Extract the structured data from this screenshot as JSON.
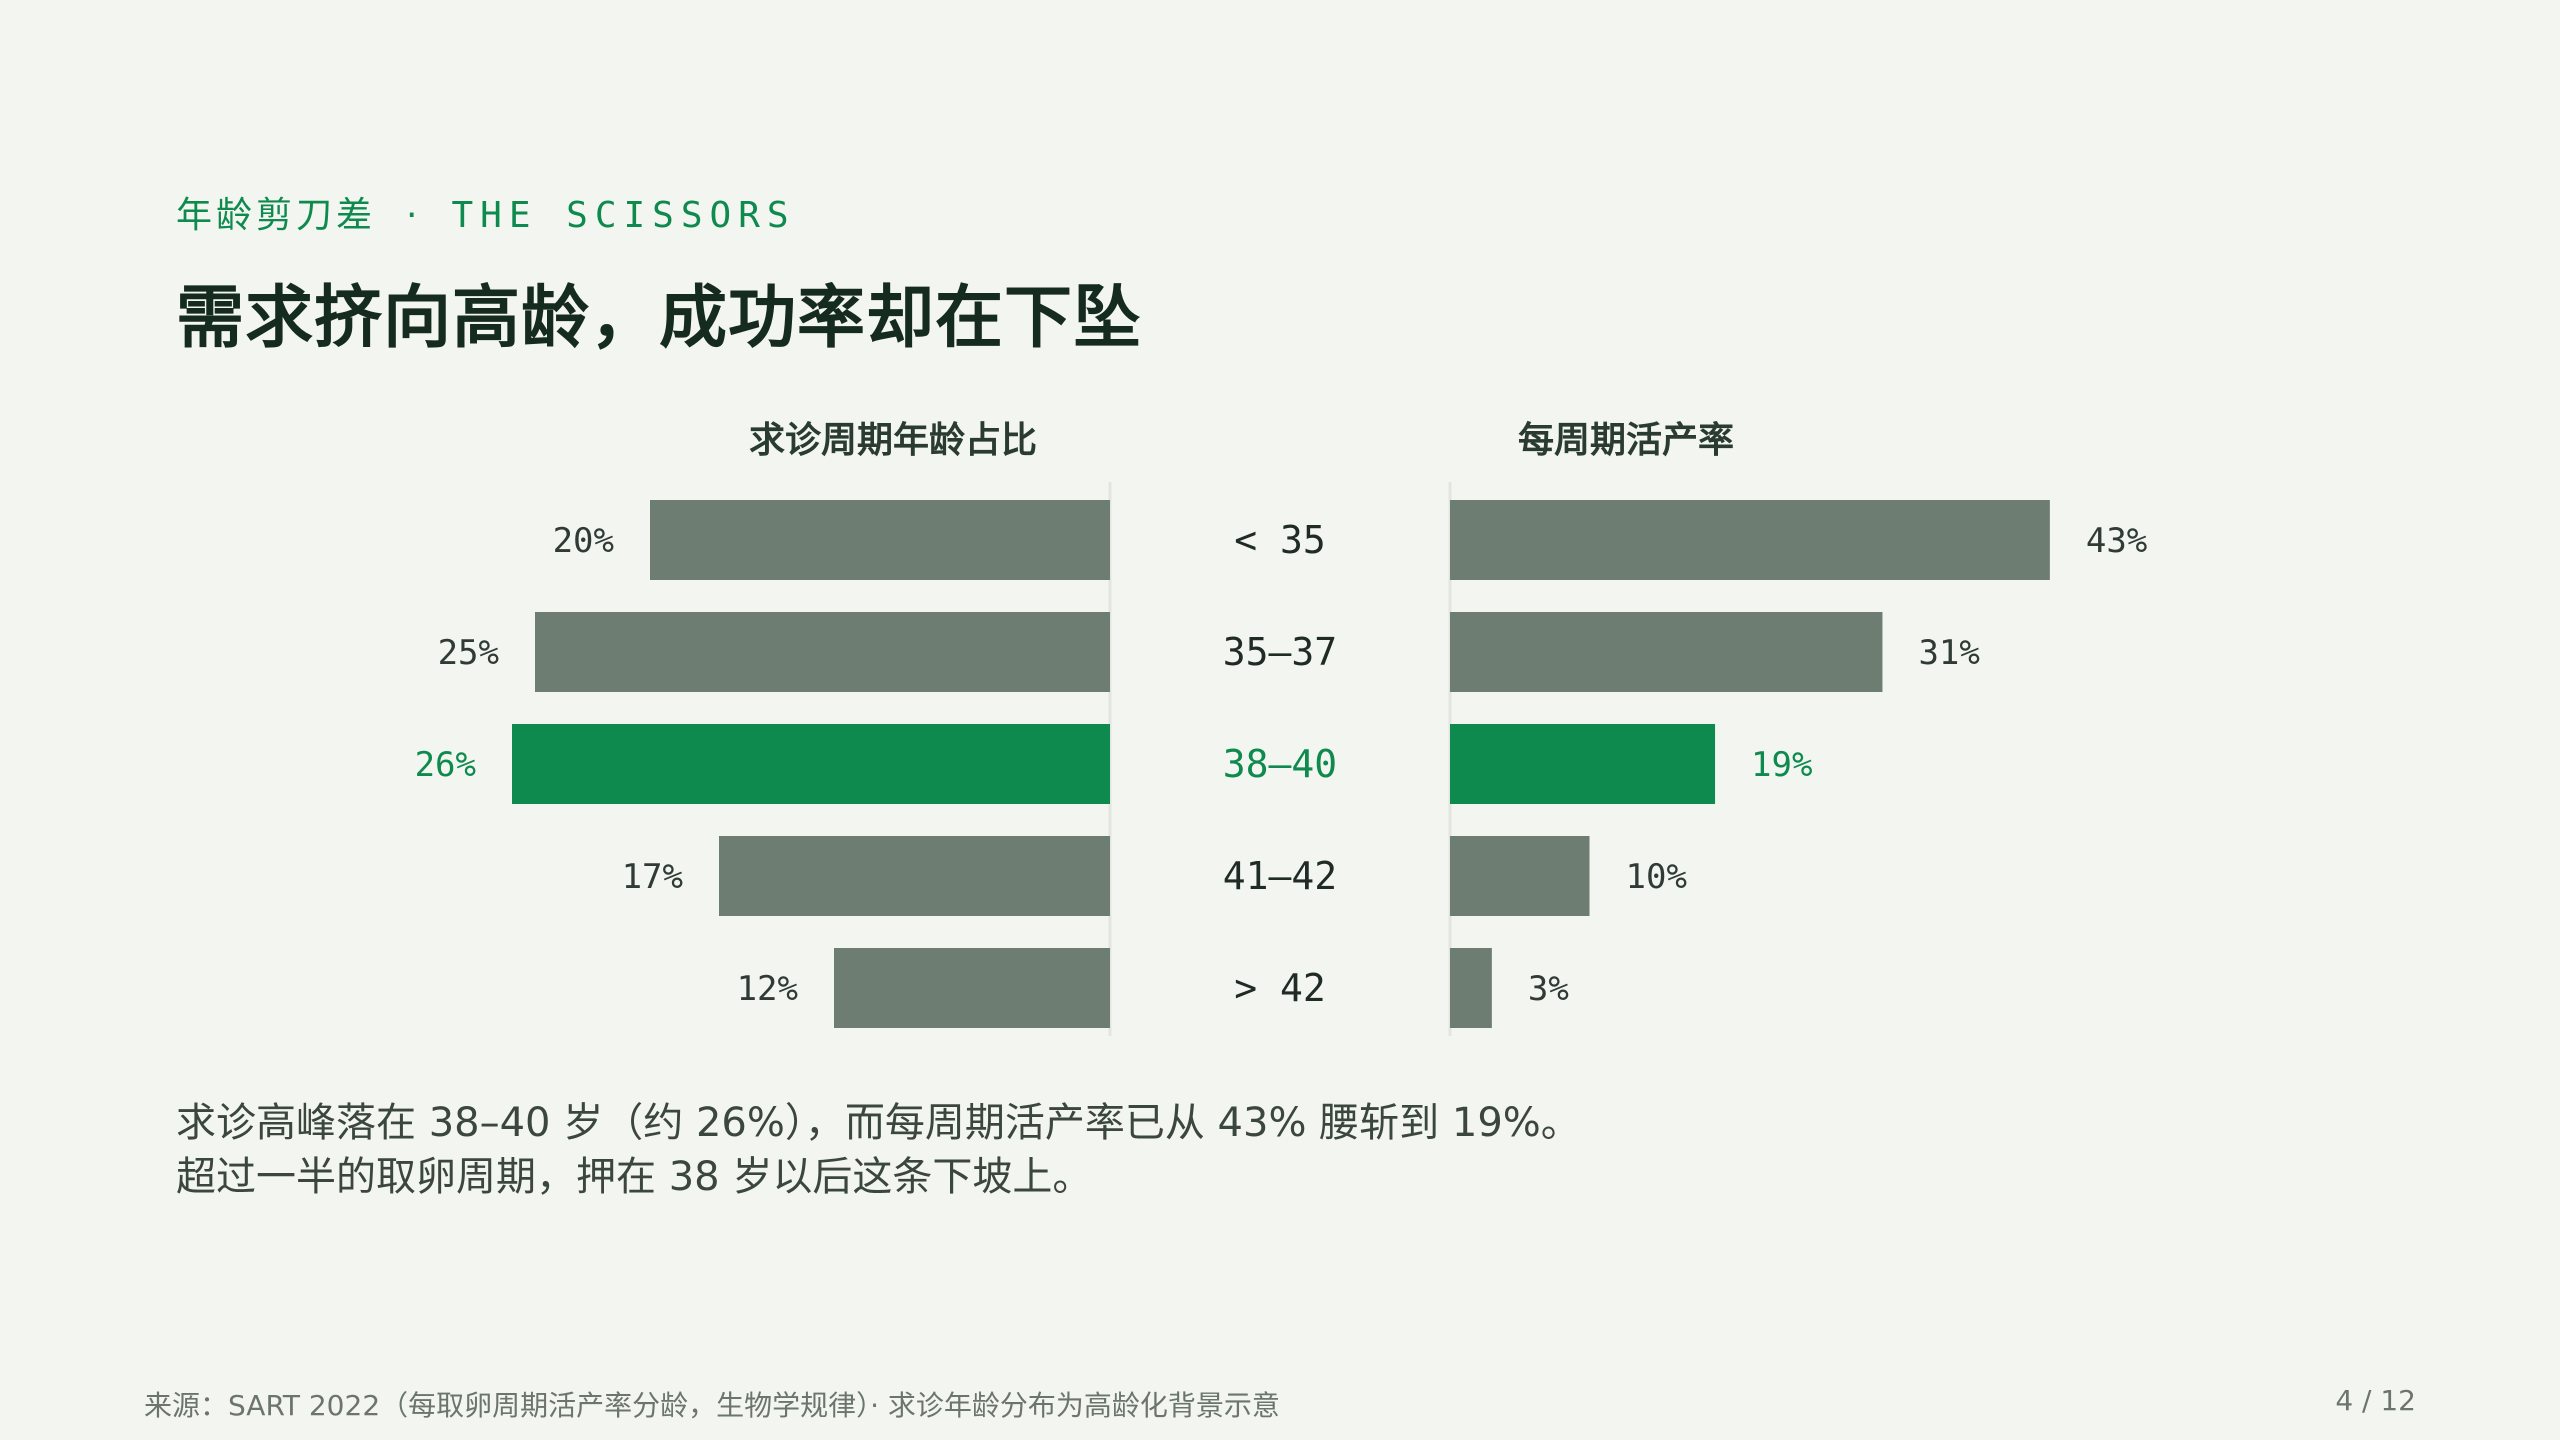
{
  "header": {
    "eyebrow_cn": "年龄剪刀差",
    "eyebrow_sep": "·",
    "eyebrow_en": "THE SCISSORS",
    "title": "需求挤向高龄，成功率却在下坠"
  },
  "chart_data": {
    "type": "bar",
    "layout": "butterfly",
    "categories": [
      "< 35",
      "35–37",
      "38–40",
      "41–42",
      "> 42"
    ],
    "highlight_category": "38–40",
    "series": [
      {
        "name": "求诊周期年龄占比",
        "values": [
          20,
          25,
          26,
          17,
          12
        ],
        "labels": [
          "20%",
          "25%",
          "26%",
          "17%",
          "12%"
        ],
        "unit": "%"
      },
      {
        "name": "每周期活产率",
        "values": [
          43,
          31,
          19,
          10,
          3
        ],
        "labels": [
          "43%",
          "31%",
          "19%",
          "10%",
          "3%"
        ],
        "unit": "%"
      }
    ],
    "colors": {
      "bar": "#6d7d71",
      "highlight": "#0e8a4e",
      "axis": "#e3e6e0"
    }
  },
  "body": {
    "line1": "求诊高峰落在 38–40 岁（约 26%），而每周期活产率已从 43% 腰斩到 19%。",
    "line2": "超过一半的取卵周期，押在 38 岁以后这条下坡上。"
  },
  "footer": {
    "source": "来源：SART 2022（每取卵周期活产率分龄，生物学规律）· 求诊年龄分布为高龄化背景示意",
    "page": "4 / 12"
  }
}
